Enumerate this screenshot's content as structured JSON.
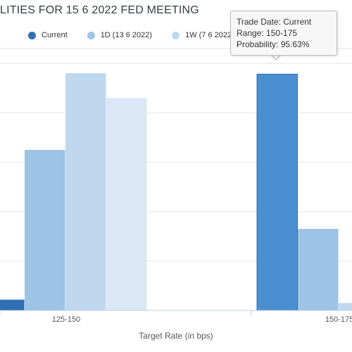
{
  "chart_data": {
    "type": "bar",
    "title": "LITIES FOR 15 6 2022 FED MEETING",
    "xlabel": "Target Rate (in bps)",
    "ylabel": "",
    "categories": [
      "125-150",
      "150-175"
    ],
    "series": [
      {
        "name": "Current",
        "values": [
          4.37,
          95.63
        ],
        "color": "#2f6fb4"
      },
      {
        "name": "1D (13 6 2022)",
        "values": [
          65,
          33
        ],
        "color": "#9dc3e6"
      },
      {
        "name": "1W (7 6 2022)",
        "values": [
          96,
          3
        ],
        "color": "#bfd8ee"
      },
      {
        "name": "",
        "values": [
          86,
          0
        ],
        "color": "#dae8f5"
      }
    ],
    "ylim": [
      0,
      100
    ],
    "grid": true,
    "legend": "top",
    "highlight_color": "#4a8fd1"
  },
  "tooltip": {
    "trade_date": "Trade Date: Current",
    "range": "Range: 150-175",
    "probability": "Probability: 95.63%"
  }
}
